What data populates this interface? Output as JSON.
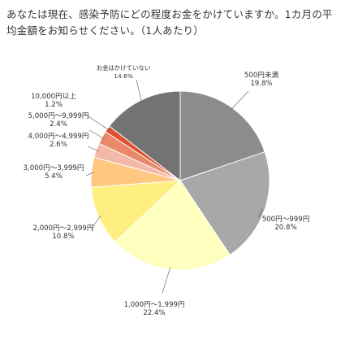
{
  "chart_data": {
    "type": "pie",
    "title": "あなたは現在、感染予防にどの程度お金をかけていますか。1カ月の平均金額をお知らせください。（1人あたり）",
    "slices": [
      {
        "label": "500円未満",
        "value": 19.8,
        "display": "19.8%",
        "color": "#8c8c8c"
      },
      {
        "label": "500円〜999円",
        "value": 20.8,
        "display": "20.8%",
        "color": "#a8a8a8"
      },
      {
        "label": "1,000円〜1,999円",
        "value": 22.4,
        "display": "22.4%",
        "color": "#ffffbf"
      },
      {
        "label": "2,000円〜2,999円",
        "value": 10.8,
        "display": "10.8%",
        "color": "#ffee80"
      },
      {
        "label": "3,000円〜3,999円",
        "value": 5.4,
        "display": "5.4%",
        "color": "#ffc880"
      },
      {
        "label": "4,000円〜4,999円",
        "value": 2.6,
        "display": "2.6%",
        "color": "#f4b8a8"
      },
      {
        "label": "5,000円〜9,999円",
        "value": 2.4,
        "display": "2.4%",
        "color": "#e88a6a"
      },
      {
        "label": "10,000円以上",
        "value": 1.2,
        "display": "1.2%",
        "color": "#e05030"
      },
      {
        "label": "お金はかけていない",
        "value": 14.6,
        "display": "14.6%",
        "color": "#737373"
      }
    ],
    "legend": "none",
    "start_angle": "12 o'clock",
    "direction": "clockwise"
  }
}
